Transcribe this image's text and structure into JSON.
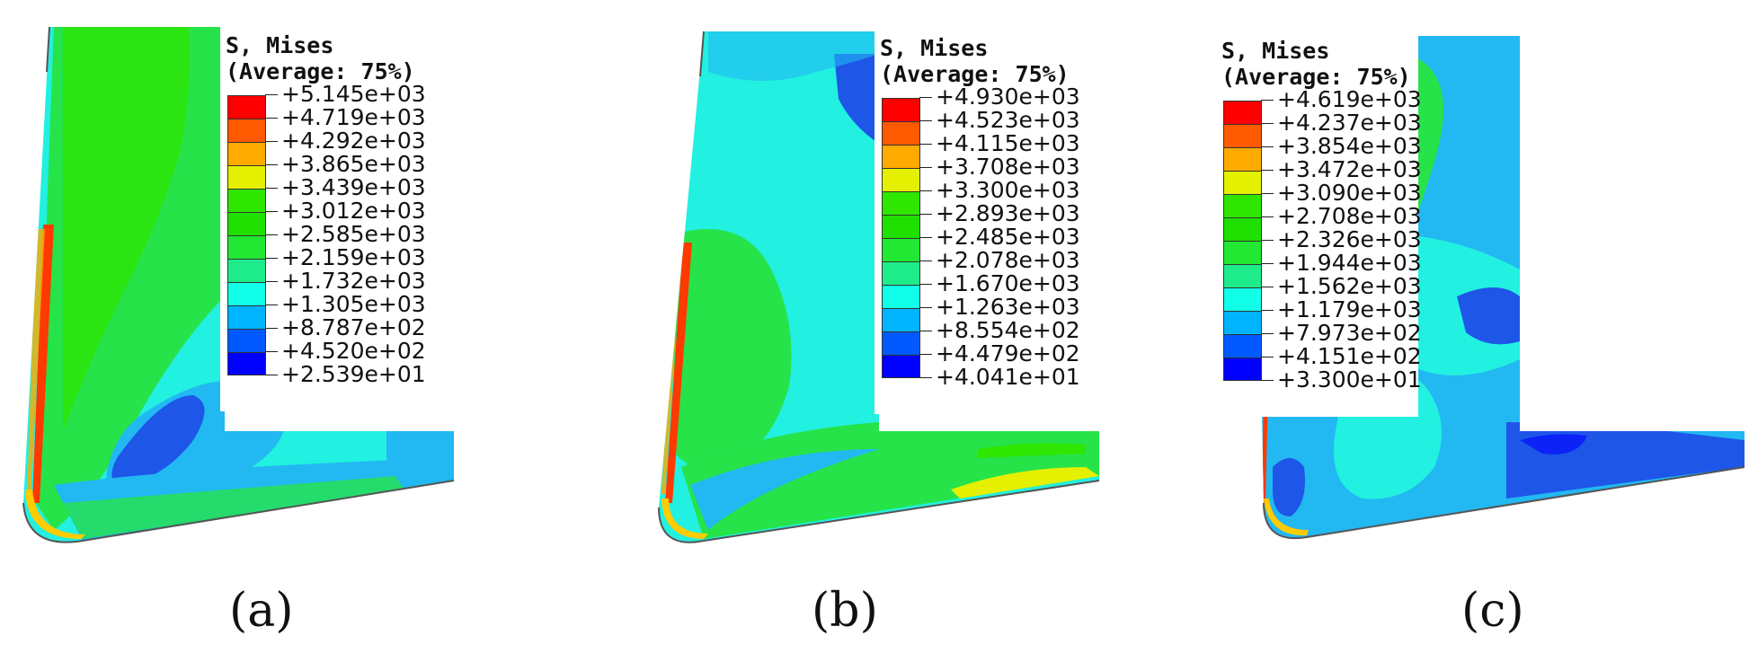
{
  "panels": [
    {
      "id": "a",
      "caption": "(a)",
      "legend_title_1": "S, Mises",
      "legend_title_2": "(Average: 75%)",
      "levels": [
        "+5.145e+03",
        "+4.719e+03",
        "+4.292e+03",
        "+3.865e+03",
        "+3.439e+03",
        "+3.012e+03",
        "+2.585e+03",
        "+2.159e+03",
        "+1.732e+03",
        "+1.305e+03",
        "+8.787e+02",
        "+4.520e+02",
        "+2.539e+01"
      ]
    },
    {
      "id": "b",
      "caption": "(b)",
      "legend_title_1": "S, Mises",
      "legend_title_2": "(Average: 75%)",
      "levels": [
        "+4.930e+03",
        "+4.523e+03",
        "+4.115e+03",
        "+3.708e+03",
        "+3.300e+03",
        "+2.893e+03",
        "+2.485e+03",
        "+2.078e+03",
        "+1.670e+03",
        "+1.263e+03",
        "+8.554e+02",
        "+4.479e+02",
        "+4.041e+01"
      ]
    },
    {
      "id": "c",
      "caption": "(c)",
      "legend_title_1": "S, Mises",
      "legend_title_2": "(Average: 75%)",
      "levels": [
        "+4.619e+03",
        "+4.237e+03",
        "+3.854e+03",
        "+3.472e+03",
        "+3.090e+03",
        "+2.708e+03",
        "+2.326e+03",
        "+1.944e+03",
        "+1.562e+03",
        "+1.179e+03",
        "+7.973e+02",
        "+4.151e+02",
        "+3.300e+01"
      ]
    }
  ],
  "colors": {
    "scale": [
      "#ff0000",
      "#ff5a00",
      "#ffaa00",
      "#e4f000",
      "#2ee600",
      "#1fe000",
      "#22e834",
      "#1eec8a",
      "#11ffe8",
      "#00b4ff",
      "#005aff",
      "#0000ff"
    ],
    "background_cyan": "#22f0e0",
    "green": "#26e34a",
    "light_blue": "#22b8f2",
    "blue": "#1e56e8"
  }
}
